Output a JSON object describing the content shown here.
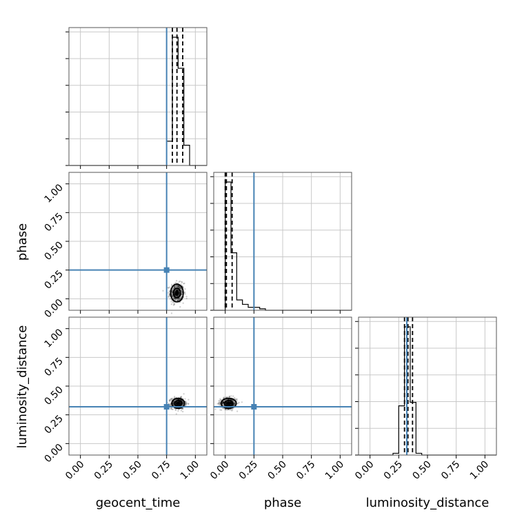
{
  "chart_data": {
    "type": "corner",
    "parameters": [
      "geocent_time",
      "phase",
      "luminosity_distance"
    ],
    "truths": {
      "geocent_time": 0.75,
      "phase": 0.25,
      "luminosity_distance": 0.32
    },
    "tick_labels": [
      "0.00",
      "0.25",
      "0.50",
      "0.75",
      "1.00"
    ],
    "tick_values": [
      0,
      0.25,
      0.5,
      0.75,
      1.0
    ],
    "xlim": [
      -0.1,
      1.1
    ],
    "grid": true,
    "truth_color": "#4682b4",
    "histograms": {
      "geocent_time": {
        "bin_edges": [
          0.7,
          0.75,
          0.8,
          0.85,
          0.9,
          0.95,
          1.0
        ],
        "counts": [
          0,
          18,
          95,
          72,
          15,
          0
        ],
        "quantiles": [
          0.8,
          0.84,
          0.89
        ]
      },
      "phase": {
        "bin_edges": [
          -0.05,
          0.0,
          0.05,
          0.1,
          0.15,
          0.2,
          0.25,
          0.3,
          0.35
        ],
        "counts": [
          0,
          87,
          39,
          7,
          4,
          2,
          2,
          1
        ],
        "quantiles": [
          0.0,
          0.01,
          0.06
        ]
      },
      "luminosity_distance": {
        "bin_edges": [
          0.2,
          0.25,
          0.3,
          0.35,
          0.4,
          0.45,
          0.5
        ],
        "counts": [
          1,
          28,
          73,
          30,
          1,
          0
        ],
        "quantiles": [
          0.3,
          0.33,
          0.37
        ]
      }
    },
    "scatter": {
      "phase_vs_geocent_time": {
        "x_center": 0.84,
        "y_center": 0.05,
        "x_spread": 0.05,
        "y_spread": 0.07
      },
      "luminosity_distance_vs_geocent_time": {
        "x_center": 0.85,
        "y_center": 0.35,
        "x_spread": 0.05,
        "y_spread": 0.04
      },
      "luminosity_distance_vs_phase": {
        "x_center": 0.03,
        "y_center": 0.35,
        "x_spread": 0.06,
        "y_spread": 0.04
      }
    }
  }
}
